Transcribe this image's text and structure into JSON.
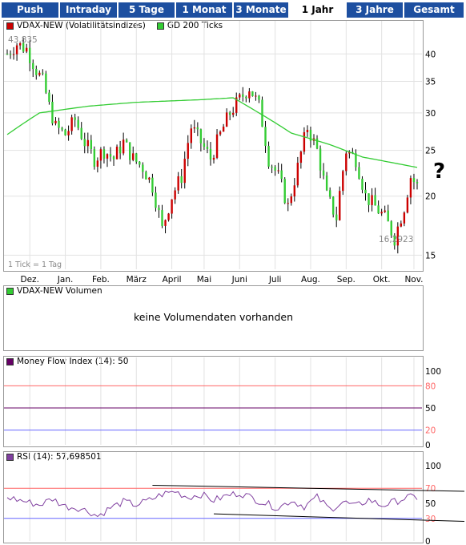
{
  "tabs": [
    {
      "label": "Push",
      "active": false
    },
    {
      "label": "Intraday",
      "active": false
    },
    {
      "label": "5 Tage",
      "active": false
    },
    {
      "label": "1 Monat",
      "active": false
    },
    {
      "label": "3 Monate",
      "active": false
    },
    {
      "label": "1 Jahr",
      "active": true
    },
    {
      "label": "3 Jahre",
      "active": false
    },
    {
      "label": "Gesamt",
      "active": false
    }
  ],
  "colors": {
    "tab_bg": "#1d4fa0",
    "price_up": "#33cc33",
    "price_down": "#cc0000",
    "ma": "#33cc33",
    "mfi": "#660066",
    "rsi": "#8040a0",
    "line_high": "#ff6666",
    "line_low": "#6666ff"
  },
  "price_panel": {
    "legend_series": "VDAX-NEW (Volatilitätsindizes)",
    "legend_ma": "GD 200 Ticks",
    "max_label": "43,835",
    "min_label": "16,2923",
    "tick_note": "1 Tick = 1 Tag",
    "question_mark": "?"
  },
  "volume_panel": {
    "legend": "VDAX-NEW Volumen",
    "message": "keine Volumendaten vorhanden"
  },
  "mfi_panel": {
    "legend": "Money Flow Index (14): 50"
  },
  "rsi_panel": {
    "legend": "RSI (14): 57,698501"
  },
  "chart_data": [
    {
      "type": "ohlc",
      "title": "VDAX-NEW (Volatilitätsindizes)",
      "y_scale": "log",
      "ylim": [
        14,
        47
      ],
      "y_ticks": [
        15,
        20,
        25,
        30,
        35,
        40
      ],
      "x_ticks": [
        "Dez.",
        "Jan.",
        "Feb.",
        "März",
        "April",
        "Mai",
        "Juni",
        "Juli",
        "Aug.",
        "Sep.",
        "Okt.",
        "Nov."
      ],
      "series": [
        {
          "name": "VDAX-NEW",
          "kind": "close",
          "anchors": [
            [
              0,
              40
            ],
            [
              3,
              42
            ],
            [
              6,
              41
            ],
            [
              9,
              37
            ],
            [
              11,
              35
            ],
            [
              13,
              31
            ],
            [
              15,
              28
            ],
            [
              18,
              27
            ],
            [
              21,
              29
            ],
            [
              24,
              26
            ],
            [
              27,
              24
            ],
            [
              30,
              25
            ],
            [
              33,
              24
            ],
            [
              36,
              26
            ],
            [
              39,
              24
            ],
            [
              42,
              23
            ],
            [
              45,
              21
            ],
            [
              48,
              17
            ],
            [
              51,
              20
            ],
            [
              54,
              22
            ],
            [
              57,
              28
            ],
            [
              60,
              26
            ],
            [
              63,
              24
            ],
            [
              66,
              27
            ],
            [
              69,
              30
            ],
            [
              72,
              32
            ],
            [
              75,
              34
            ],
            [
              78,
              31
            ],
            [
              81,
              24
            ],
            [
              84,
              22
            ],
            [
              87,
              19
            ],
            [
              90,
              23
            ],
            [
              93,
              28
            ],
            [
              96,
              25
            ],
            [
              99,
              20
            ],
            [
              102,
              18
            ],
            [
              105,
              25
            ],
            [
              108,
              24
            ],
            [
              111,
              20
            ],
            [
              114,
              19
            ],
            [
              117,
              18
            ],
            [
              120,
              16.3
            ],
            [
              123,
              19
            ],
            [
              125,
              22
            ],
            [
              127,
              21
            ]
          ]
        },
        {
          "name": "GD 200 Ticks",
          "kind": "line",
          "anchors": [
            [
              0,
              27
            ],
            [
              10,
              30
            ],
            [
              25,
              31
            ],
            [
              40,
              31.6
            ],
            [
              60,
              32
            ],
            [
              70,
              32.3
            ],
            [
              78,
              30
            ],
            [
              88,
              27.2
            ],
            [
              100,
              25.7
            ],
            [
              110,
              24.2
            ],
            [
              127,
              23
            ]
          ]
        }
      ]
    },
    {
      "type": "line",
      "title": "Money Flow Index (14): 50",
      "ylim": [
        0,
        100
      ],
      "y_ticks": [
        0,
        20,
        50,
        80,
        100
      ],
      "reference_lines": [
        80,
        50,
        20
      ],
      "series": [
        {
          "name": "Money Flow Index (14)",
          "value": 50
        }
      ]
    },
    {
      "type": "line",
      "title": "RSI (14): 57,698501",
      "ylim": [
        0,
        100
      ],
      "y_ticks": [
        0,
        30,
        50,
        70,
        100
      ],
      "reference_lines": [
        70,
        30
      ],
      "series": [
        {
          "name": "RSI (14)",
          "anchors": [
            [
              0,
              58
            ],
            [
              6,
              52
            ],
            [
              10,
              48
            ],
            [
              14,
              56
            ],
            [
              18,
              46
            ],
            [
              22,
              44
            ],
            [
              26,
              38
            ],
            [
              28,
              33
            ],
            [
              32,
              44
            ],
            [
              36,
              52
            ],
            [
              40,
              48
            ],
            [
              44,
              54
            ],
            [
              48,
              62
            ],
            [
              52,
              66
            ],
            [
              56,
              58
            ],
            [
              60,
              62
            ],
            [
              64,
              54
            ],
            [
              68,
              60
            ],
            [
              72,
              64
            ],
            [
              76,
              57
            ],
            [
              80,
              50
            ],
            [
              84,
              44
            ],
            [
              88,
              54
            ],
            [
              92,
              46
            ],
            [
              96,
              58
            ],
            [
              100,
              42
            ],
            [
              104,
              52
            ],
            [
              108,
              46
            ],
            [
              112,
              55
            ],
            [
              116,
              47
            ],
            [
              120,
              52
            ],
            [
              124,
              58
            ],
            [
              127,
              57.7
            ]
          ]
        }
      ],
      "trend_lines": [
        [
          [
            45,
            74
          ],
          [
            127,
            66
          ]
        ],
        [
          [
            64,
            36
          ],
          [
            127,
            26
          ]
        ]
      ]
    }
  ]
}
